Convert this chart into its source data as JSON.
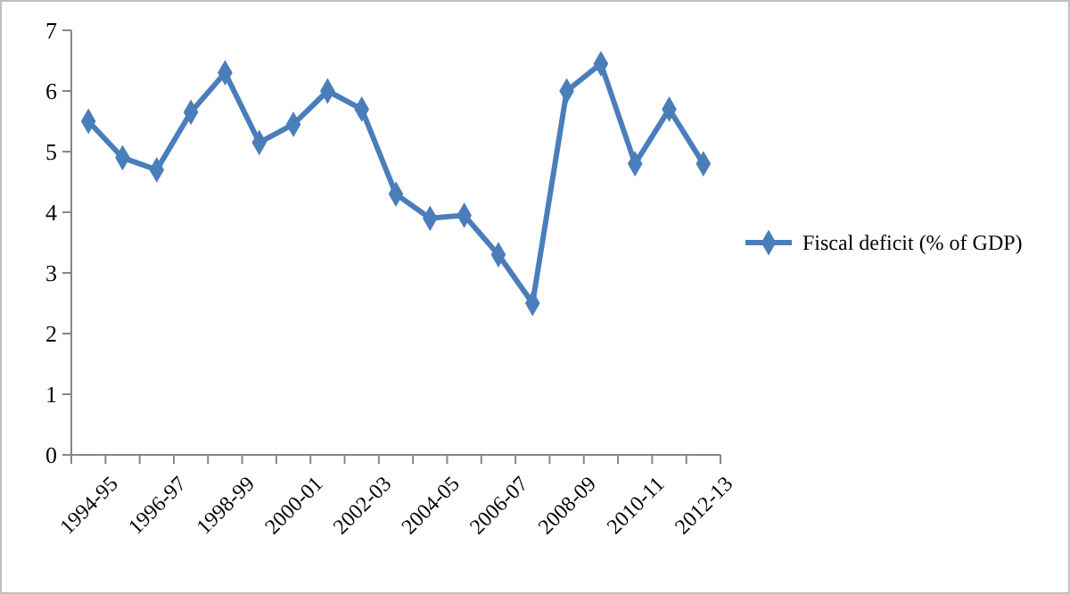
{
  "chart_data": {
    "type": "line",
    "categories": [
      "1994-95",
      null,
      "1996-97",
      null,
      "1998-99",
      null,
      "2000-01",
      null,
      "2002-03",
      null,
      "2004-05",
      null,
      "2006-07",
      null,
      "2008-09",
      null,
      "2010-11",
      null,
      "2012-13"
    ],
    "series": [
      {
        "name": "Fiscal deficit (% of GDP)",
        "color": "#4a7ebb",
        "values": [
          5.5,
          4.9,
          4.7,
          5.65,
          6.3,
          5.15,
          5.45,
          6.0,
          5.7,
          4.3,
          3.9,
          3.95,
          3.3,
          2.5,
          6.0,
          6.45,
          4.8,
          5.7,
          4.8
        ]
      }
    ],
    "ylim": [
      0,
      7
    ],
    "yticks": [
      0,
      1,
      2,
      3,
      4,
      5,
      6,
      7
    ],
    "grid": false,
    "legend": "right",
    "marker": "diamond",
    "line_style": "solid"
  }
}
